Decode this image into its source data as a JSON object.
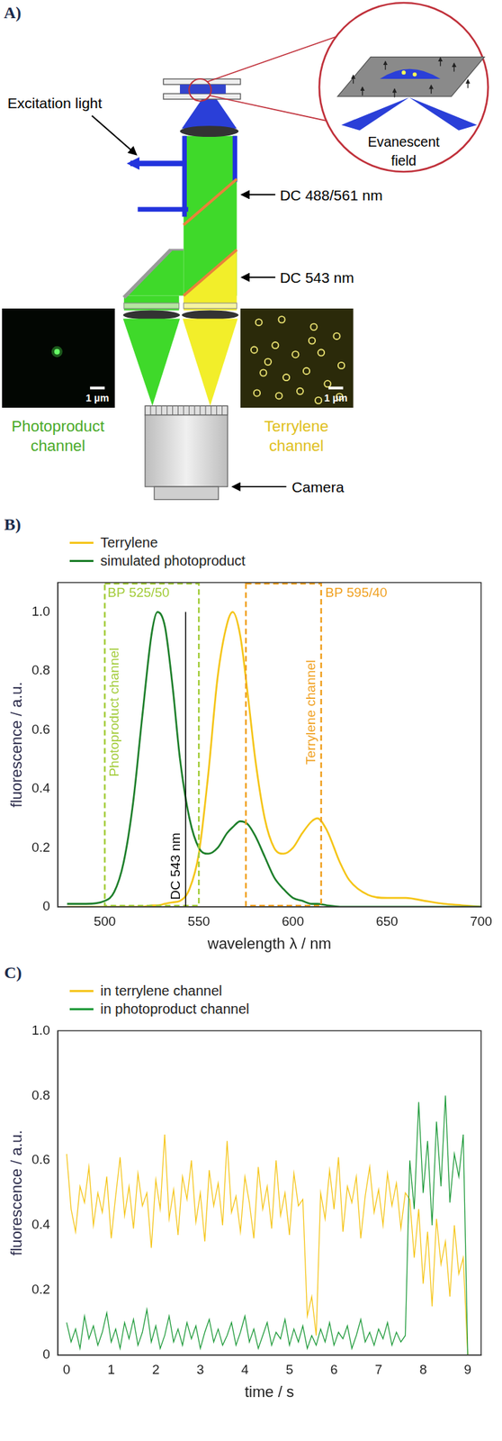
{
  "diagram": {
    "label": "A)",
    "excitation_label": "Excitation light",
    "dichroics": [
      "DC 488/561 nm",
      "DC 543 nm"
    ],
    "inset_label": "Evanescent field",
    "channels": [
      {
        "label": "Photoproduct channel",
        "scale_bar": "1 µm"
      },
      {
        "label": "Terrylene channel",
        "scale_bar": "1 µm"
      }
    ],
    "camera_label": "Camera"
  },
  "chart_data": [
    {
      "panel": "B)",
      "type": "line",
      "xlabel": "wavelength λ / nm",
      "ylabel": "fluorescence / a.u.",
      "xlim": [
        475,
        700
      ],
      "xticks": [
        500,
        550,
        600,
        650,
        700
      ],
      "ylim": [
        0,
        1.1
      ],
      "yticks": [
        0,
        0.2,
        0.4,
        0.6,
        0.8,
        {
          "value": 1,
          "label": "1.0"
        }
      ],
      "grid": false,
      "legend": "top left",
      "x": [
        480,
        490,
        500,
        505,
        510,
        515,
        520,
        525,
        528,
        532,
        536,
        540,
        545,
        550,
        555,
        560,
        565,
        568,
        572,
        576,
        580,
        585,
        590,
        595,
        600,
        605,
        610,
        613,
        618,
        625,
        630,
        640,
        650,
        660,
        670,
        680,
        690,
        700
      ],
      "series": [
        {
          "name": "Terrylene",
          "color": "#f5c518",
          "values": [
            0,
            0,
            0,
            0,
            0,
            0,
            0,
            0.005,
            0.005,
            0.01,
            0.015,
            0.02,
            0.06,
            0.18,
            0.45,
            0.78,
            0.96,
            1.0,
            0.92,
            0.72,
            0.5,
            0.3,
            0.2,
            0.18,
            0.2,
            0.25,
            0.29,
            0.3,
            0.26,
            0.15,
            0.09,
            0.04,
            0.03,
            0.03,
            0.02,
            0.01,
            0.005,
            0
          ]
        },
        {
          "name": "simulated photoproduct",
          "color": "#1d7f2a",
          "values": [
            0.01,
            0.01,
            0.02,
            0.05,
            0.15,
            0.35,
            0.65,
            0.93,
            1.0,
            0.95,
            0.75,
            0.5,
            0.3,
            0.2,
            0.18,
            0.2,
            0.25,
            0.27,
            0.29,
            0.28,
            0.24,
            0.17,
            0.1,
            0.06,
            0.03,
            0.02,
            0.01,
            0.01,
            0.005,
            0,
            0,
            0,
            0,
            0,
            0,
            0,
            0,
            0
          ]
        }
      ],
      "bands": [
        {
          "label": "BP 525/50",
          "channel": "Photoproduct channel",
          "from": 500,
          "to": 550,
          "color": "#a3cc3a"
        },
        {
          "label": "BP 595/40",
          "channel": "Terrylene channel",
          "from": 575,
          "to": 615,
          "color": "#f0a020"
        }
      ],
      "lines": [
        {
          "label": "DC 543 nm",
          "x": 543,
          "color": "#000000"
        }
      ]
    },
    {
      "panel": "C)",
      "type": "line",
      "xlabel": "time / s",
      "ylabel": "fluorescence / a.u.",
      "xlim": [
        -0.2,
        9.3
      ],
      "xticks": [
        0,
        1,
        2,
        3,
        4,
        5,
        6,
        7,
        8,
        9
      ],
      "ylim": [
        0,
        1
      ],
      "yticks": [
        0,
        0.2,
        0.4,
        0.6,
        0.8,
        {
          "value": 1,
          "label": "1.0"
        }
      ],
      "grid": false,
      "legend": "top left",
      "x": [
        0,
        0.1,
        0.2,
        0.3,
        0.4,
        0.5,
        0.6,
        0.7,
        0.8,
        0.9,
        1,
        1.1,
        1.2,
        1.3,
        1.4,
        1.5,
        1.6,
        1.7,
        1.8,
        1.9,
        2,
        2.1,
        2.2,
        2.3,
        2.4,
        2.5,
        2.6,
        2.7,
        2.8,
        2.9,
        3,
        3.1,
        3.2,
        3.3,
        3.4,
        3.5,
        3.6,
        3.7,
        3.8,
        3.9,
        4,
        4.1,
        4.2,
        4.3,
        4.4,
        4.5,
        4.6,
        4.7,
        4.8,
        4.9,
        5,
        5.1,
        5.2,
        5.3,
        5.4,
        5.5,
        5.6,
        5.7,
        5.8,
        5.9,
        6,
        6.1,
        6.2,
        6.3,
        6.4,
        6.5,
        6.6,
        6.7,
        6.8,
        6.9,
        7,
        7.1,
        7.2,
        7.3,
        7.4,
        7.5,
        7.6,
        7.7,
        7.8,
        7.9,
        8,
        8.1,
        8.2,
        8.3,
        8.4,
        8.5,
        8.6,
        8.7,
        8.8,
        8.9,
        9
      ],
      "series": [
        {
          "name": "in terrylene channel",
          "color": "#f5c518",
          "values": [
            0.62,
            0.45,
            0.38,
            0.52,
            0.47,
            0.58,
            0.4,
            0.5,
            0.44,
            0.55,
            0.36,
            0.49,
            0.61,
            0.43,
            0.52,
            0.39,
            0.56,
            0.46,
            0.5,
            0.33,
            0.54,
            0.45,
            0.68,
            0.42,
            0.51,
            0.37,
            0.55,
            0.48,
            0.6,
            0.41,
            0.5,
            0.35,
            0.57,
            0.46,
            0.53,
            0.4,
            0.66,
            0.44,
            0.49,
            0.38,
            0.55,
            0.47,
            0.36,
            0.58,
            0.45,
            0.52,
            0.39,
            0.6,
            0.43,
            0.5,
            0.37,
            0.56,
            0.46,
            0.48,
            0.12,
            0.18,
            0.06,
            0.5,
            0.42,
            0.57,
            0.45,
            0.61,
            0.38,
            0.52,
            0.47,
            0.55,
            0.36,
            0.49,
            0.58,
            0.44,
            0.51,
            0.4,
            0.56,
            0.46,
            0.53,
            0.39,
            0.5,
            0.48,
            0.3,
            0.45,
            0.22,
            0.38,
            0.15,
            0.42,
            0.28,
            0.35,
            0.18,
            0.4,
            0.25,
            0.3,
            0
          ]
        },
        {
          "name": "in photoproduct channel",
          "color": "#1e9a3a",
          "values": [
            0.1,
            0.04,
            0.08,
            0.02,
            0.12,
            0.05,
            0.09,
            0.03,
            0.07,
            0.13,
            0.04,
            0.08,
            0.02,
            0.1,
            0.05,
            0.11,
            0.03,
            0.07,
            0.14,
            0.04,
            0.09,
            0.02,
            0.06,
            0.12,
            0.04,
            0.08,
            0.03,
            0.1,
            0.05,
            0.09,
            0.02,
            0.07,
            0.11,
            0.04,
            0.08,
            0.03,
            0.06,
            0.1,
            0.03,
            0.07,
            0.12,
            0.04,
            0.08,
            0.02,
            0.06,
            0.1,
            0.03,
            0.07,
            0.05,
            0.11,
            0.03,
            0.08,
            0.04,
            0.09,
            0.02,
            0.06,
            0.03,
            0.08,
            0.04,
            0.1,
            0.03,
            0.07,
            0.05,
            0.09,
            0.02,
            0.06,
            0.11,
            0.04,
            0.07,
            0.03,
            0.08,
            0.05,
            0.1,
            0.03,
            0.07,
            0.04,
            0.06,
            0.6,
            0.45,
            0.78,
            0.5,
            0.66,
            0.4,
            0.72,
            0.52,
            0.8,
            0.47,
            0.62,
            0.55,
            0.68,
            0
          ]
        }
      ]
    }
  ]
}
